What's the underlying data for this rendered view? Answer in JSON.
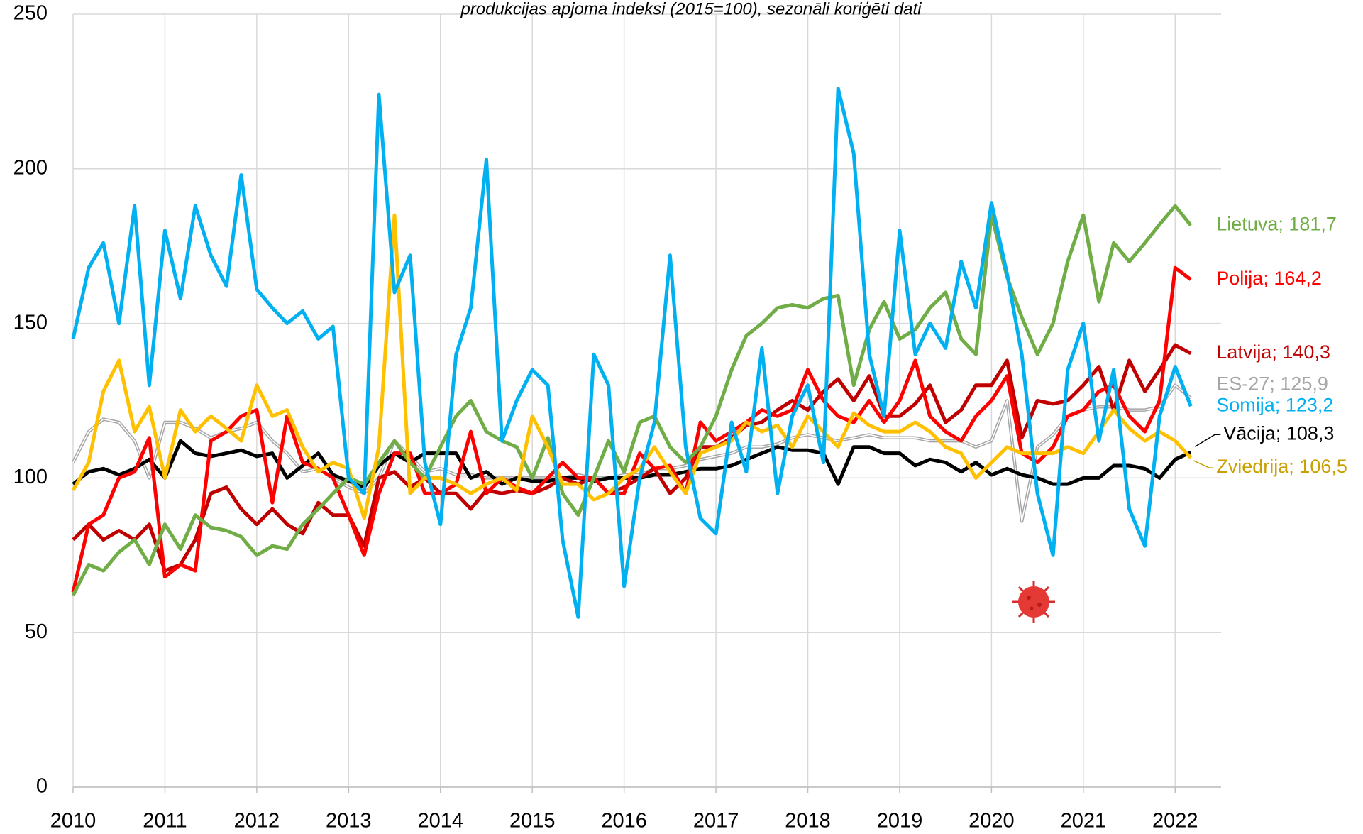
{
  "chart_data": {
    "type": "line",
    "title": "produkcijas apjoma indeksi (2015=100), sezonāli koriģēti dati",
    "x": [
      2010,
      2010.17,
      2010.33,
      2010.5,
      2010.67,
      2010.83,
      2011,
      2011.17,
      2011.33,
      2011.5,
      2011.67,
      2011.83,
      2012,
      2012.17,
      2012.33,
      2012.5,
      2012.67,
      2012.83,
      2013,
      2013.17,
      2013.33,
      2013.5,
      2013.67,
      2013.83,
      2014,
      2014.17,
      2014.33,
      2014.5,
      2014.67,
      2014.83,
      2015,
      2015.17,
      2015.33,
      2015.5,
      2015.67,
      2015.83,
      2016,
      2016.17,
      2016.33,
      2016.5,
      2016.67,
      2016.83,
      2017,
      2017.17,
      2017.33,
      2017.5,
      2017.67,
      2017.83,
      2018,
      2018.17,
      2018.33,
      2018.5,
      2018.67,
      2018.83,
      2019,
      2019.17,
      2019.33,
      2019.5,
      2019.67,
      2019.83,
      2020,
      2020.17,
      2020.33,
      2020.5,
      2020.67,
      2020.83,
      2021,
      2021.17,
      2021.33,
      2021.5,
      2021.67,
      2021.83,
      2022,
      2022.17
    ],
    "xlim": [
      2010,
      2022.5
    ],
    "xticks": [
      2010,
      2011,
      2012,
      2013,
      2014,
      2015,
      2016,
      2017,
      2018,
      2019,
      2020,
      2021,
      2022
    ],
    "ylim": [
      0,
      250
    ],
    "yticks": [
      0,
      50,
      100,
      150,
      200,
      250
    ],
    "grid": true,
    "series": [
      {
        "name": "ES-27;  125,9",
        "color": "#a6a6a6",
        "style": "double",
        "values": [
          105,
          115,
          119,
          118,
          112,
          100,
          118,
          118,
          116,
          113,
          115,
          116,
          118,
          112,
          108,
          102,
          103,
          100,
          97,
          95,
          100,
          112,
          107,
          102,
          103,
          101,
          101,
          100,
          100,
          100,
          100,
          100,
          100,
          101,
          100,
          100,
          101,
          101,
          103,
          103,
          104,
          106,
          107,
          108,
          110,
          110,
          111,
          113,
          114,
          113,
          112,
          113,
          114,
          113,
          113,
          113,
          112,
          112,
          112,
          110,
          112,
          125,
          86,
          110,
          114,
          120,
          122,
          123,
          123,
          122,
          122,
          123,
          130,
          125.9
        ]
      },
      {
        "name": "Vācija;  108,3",
        "color": "#000000",
        "values": [
          98,
          102,
          103,
          101,
          103,
          106,
          100,
          112,
          108,
          107,
          108,
          109,
          107,
          108,
          100,
          104,
          108,
          101,
          99,
          97,
          104,
          108,
          105,
          108,
          108,
          108,
          100,
          102,
          98,
          100,
          99,
          99,
          100,
          100,
          99,
          100,
          100,
          100,
          101,
          101,
          102,
          103,
          103,
          104,
          106,
          108,
          110,
          109,
          109,
          108,
          98,
          110,
          110,
          108,
          108,
          104,
          106,
          105,
          102,
          105,
          101,
          103,
          101,
          100,
          98,
          98,
          100,
          100,
          104,
          104,
          103,
          100,
          106,
          108.3
        ]
      },
      {
        "name": "Latvija;  140,3",
        "color": "#c00000",
        "values": [
          80,
          85,
          80,
          83,
          80,
          85,
          70,
          72,
          80,
          95,
          97,
          90,
          85,
          90,
          85,
          82,
          92,
          88,
          88,
          78,
          100,
          102,
          97,
          100,
          95,
          95,
          90,
          96,
          95,
          96,
          95,
          97,
          100,
          98,
          100,
          95,
          97,
          100,
          103,
          95,
          100,
          110,
          110,
          113,
          117,
          118,
          122,
          125,
          122,
          128,
          132,
          125,
          133,
          120,
          120,
          124,
          130,
          118,
          122,
          130,
          130,
          138,
          113,
          125,
          124,
          125,
          130,
          136,
          122,
          138,
          128,
          135,
          143,
          140.3
        ]
      },
      {
        "name": "Polija;  164,2",
        "color": "#ff0000",
        "values": [
          63,
          85,
          88,
          100,
          102,
          113,
          68,
          72,
          70,
          112,
          115,
          120,
          122,
          92,
          120,
          105,
          103,
          100,
          88,
          75,
          95,
          108,
          108,
          95,
          95,
          98,
          115,
          95,
          100,
          97,
          95,
          100,
          105,
          100,
          100,
          95,
          95,
          108,
          103,
          104,
          95,
          118,
          112,
          115,
          118,
          122,
          120,
          122,
          135,
          125,
          120,
          118,
          125,
          118,
          125,
          138,
          120,
          115,
          112,
          120,
          125,
          133,
          108,
          105,
          110,
          120,
          122,
          128,
          130,
          120,
          115,
          125,
          168,
          164.2
        ]
      },
      {
        "name": "Lietuva;  181,7",
        "color": "#70ad47",
        "values": [
          62,
          72,
          70,
          76,
          80,
          72,
          85,
          77,
          88,
          84,
          83,
          81,
          75,
          78,
          77,
          85,
          90,
          95,
          100,
          98,
          105,
          112,
          105,
          100,
          110,
          120,
          125,
          115,
          112,
          110,
          100,
          113,
          95,
          88,
          100,
          112,
          102,
          118,
          120,
          110,
          105,
          110,
          120,
          135,
          146,
          150,
          155,
          156,
          155,
          158,
          159,
          130,
          148,
          157,
          145,
          148,
          155,
          160,
          145,
          140,
          185,
          165,
          152,
          140,
          150,
          170,
          185,
          157,
          176,
          170,
          176,
          182,
          188,
          181.7
        ]
      },
      {
        "name": "Zviedrija;  106,5",
        "color": "#ffc000",
        "label_color": "#c9a000",
        "values": [
          96,
          105,
          128,
          138,
          115,
          123,
          100,
          122,
          115,
          120,
          116,
          112,
          130,
          120,
          122,
          110,
          102,
          105,
          103,
          87,
          110,
          185,
          95,
          100,
          100,
          98,
          95,
          98,
          100,
          96,
          120,
          110,
          98,
          98,
          93,
          95,
          100,
          103,
          110,
          102,
          95,
          108,
          110,
          112,
          118,
          115,
          117,
          110,
          120,
          115,
          110,
          121,
          117,
          115,
          115,
          118,
          115,
          110,
          108,
          100,
          105,
          110,
          108,
          108,
          108,
          110,
          108,
          115,
          122,
          116,
          112,
          115,
          112,
          106.5
        ]
      },
      {
        "name": "Somija;  123,2",
        "color": "#00b0f0",
        "values": [
          145,
          168,
          176,
          150,
          188,
          130,
          180,
          158,
          188,
          172,
          162,
          198,
          161,
          155,
          150,
          154,
          145,
          149,
          100,
          95,
          224,
          160,
          172,
          105,
          85,
          140,
          155,
          203,
          112,
          125,
          135,
          130,
          80,
          55,
          140,
          130,
          65,
          100,
          118,
          172,
          110,
          87,
          82,
          118,
          102,
          142,
          95,
          120,
          130,
          105,
          226,
          205,
          140,
          120,
          180,
          140,
          150,
          142,
          170,
          155,
          189,
          166,
          140,
          95,
          75,
          135,
          150,
          112,
          135,
          90,
          78,
          120,
          136,
          123.2
        ]
      }
    ]
  }
}
